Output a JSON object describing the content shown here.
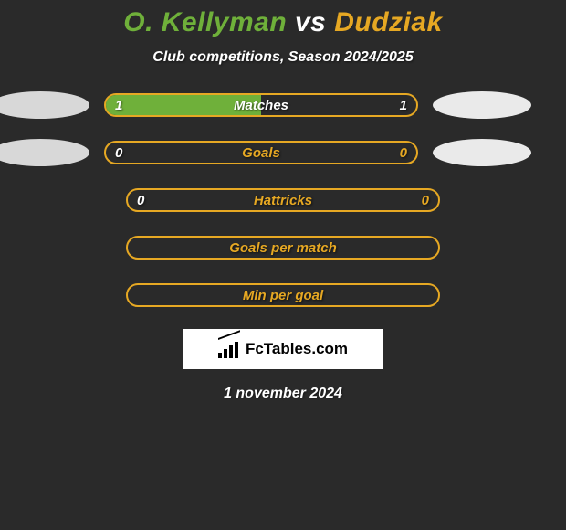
{
  "title": {
    "player1": "O. Kellyman",
    "vs": "vs",
    "player2": "Dudziak",
    "player1_color": "#6fb03a",
    "vs_color": "#ffffff",
    "player2_color": "#e6a823"
  },
  "subtitle": "Club competitions, Season 2024/2025",
  "stats": [
    {
      "label": "Matches",
      "left_value": "1",
      "right_value": "1",
      "fill_color": "#6fb03a",
      "border_color": "#e6a823",
      "fill_pct": 50,
      "label_color": "#ffffff",
      "show_ellipses": true,
      "ellipse_left_visible": true,
      "ellipse_right_visible": true
    },
    {
      "label": "Goals",
      "left_value": "0",
      "right_value": "0",
      "fill_color": "#6fb03a",
      "border_color": "#e6a823",
      "fill_pct": 0,
      "label_color": "#e6a823",
      "show_ellipses": true,
      "ellipse_left_visible": true,
      "ellipse_right_visible": true
    },
    {
      "label": "Hattricks",
      "left_value": "0",
      "right_value": "0",
      "fill_color": "#6fb03a",
      "border_color": "#e6a823",
      "fill_pct": 0,
      "label_color": "#e6a823",
      "show_ellipses": false
    },
    {
      "label": "Goals per match",
      "left_value": "",
      "right_value": "",
      "fill_color": "#6fb03a",
      "border_color": "#e6a823",
      "fill_pct": 0,
      "label_color": "#e6a823",
      "show_ellipses": false
    },
    {
      "label": "Min per goal",
      "left_value": "",
      "right_value": "",
      "fill_color": "#6fb03a",
      "border_color": "#e6a823",
      "fill_pct": 0,
      "label_color": "#e6a823",
      "show_ellipses": false
    }
  ],
  "logo_text": "FcTables.com",
  "date": "1 november 2024",
  "colors": {
    "background": "#2a2a2a",
    "ellipse_left": "#d8d8d8",
    "ellipse_right": "#eaeaea",
    "logo_bg": "#ffffff"
  }
}
